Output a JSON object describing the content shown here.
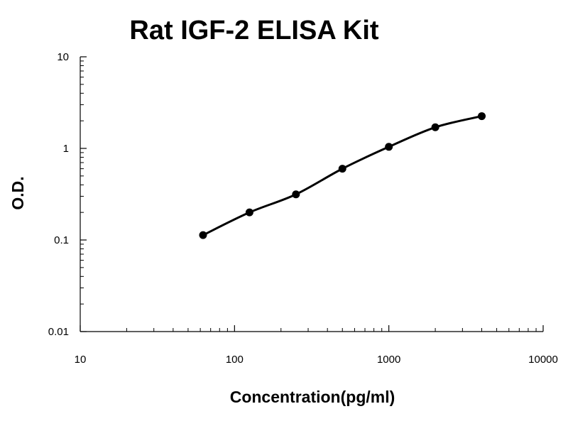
{
  "chart_data": {
    "type": "line",
    "title": "Rat IGF-2 ELISA Kit",
    "xlabel": "Concentration(pg/ml)",
    "ylabel": "O.D.",
    "x_scale": "log",
    "y_scale": "log",
    "xlim": [
      10,
      10000
    ],
    "ylim": [
      0.01,
      10
    ],
    "x_ticks": [
      "10",
      "100",
      "1000",
      "10000"
    ],
    "y_ticks": [
      "0.01",
      "0.1",
      "1",
      "10"
    ],
    "grid": false,
    "series": [
      {
        "x": [
          62.5,
          125,
          250,
          500,
          1000,
          2000,
          4000
        ],
        "y": [
          0.113,
          0.2,
          0.315,
          0.6,
          1.04,
          1.7,
          2.25
        ]
      }
    ],
    "colors": {
      "line": "#000000",
      "marker": "#000000"
    }
  }
}
